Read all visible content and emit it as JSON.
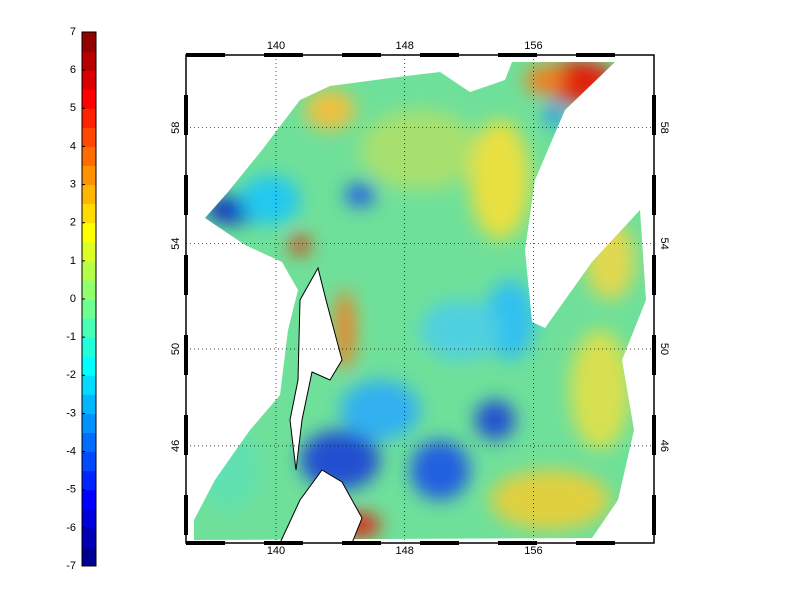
{
  "colorbar": {
    "ticks": [
      7,
      6,
      5,
      4,
      3,
      2,
      1,
      0,
      -1,
      -2,
      -3,
      -4,
      -5,
      -6,
      -7
    ]
  },
  "map": {
    "lon_ticks": [
      140,
      148,
      156
    ],
    "lat_ticks": [
      58,
      54,
      50,
      46
    ]
  }
}
